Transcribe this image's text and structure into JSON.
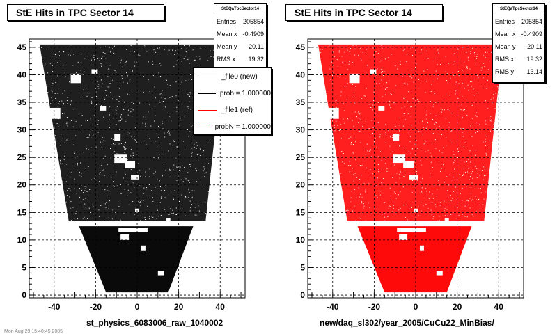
{
  "footer": "Mon Aug 29 15:40:45 2005",
  "panels": [
    {
      "title": "StE Hits in TPC Sector 14",
      "stats": {
        "name": "StEQaTpcSector14",
        "rows": [
          {
            "label": "Entries",
            "value": "205854"
          },
          {
            "label": "Mean x",
            "value": "-0.4909"
          },
          {
            "label": "Mean y",
            "value": "20.11"
          },
          {
            "label": "RMS x",
            "value": "19.32"
          }
        ]
      },
      "legend": [
        {
          "label": "_file0 (new)",
          "color": "#000000"
        },
        {
          "label": "prob = 1.000000",
          "color": "#000000"
        },
        {
          "label": "_file1 (ref)",
          "color": "#ff0000"
        },
        {
          "label": "probN = 1.000000",
          "color": "#ff0000"
        }
      ],
      "xtitle": "st_physics_6083006_raw_1040002",
      "color": "#000000"
    },
    {
      "title": "StE Hits in TPC Sector 14",
      "stats": {
        "name": "StEQaTpcSector14",
        "rows": [
          {
            "label": "Entries",
            "value": "205854"
          },
          {
            "label": "Mean x",
            "value": "-0.4909"
          },
          {
            "label": "Mean y",
            "value": "20.11"
          },
          {
            "label": "RMS x",
            "value": "19.32"
          },
          {
            "label": "RMS y",
            "value": "13.14"
          }
        ]
      },
      "legend": [],
      "xtitle": "new/daq_sl302/year_2005/CuCu22_MinBias/",
      "color": "#ff0000"
    }
  ],
  "chart_data": [
    {
      "type": "heatmap",
      "title": "StE Hits in TPC Sector 14",
      "xlabel": "st_physics_6083006_raw_1040002",
      "ylabel": "",
      "xlim": [
        -52,
        52
      ],
      "ylim": [
        -0.5,
        46.5
      ],
      "xticks": [
        -40,
        -20,
        0,
        20,
        40
      ],
      "yticks": [
        0,
        5,
        10,
        15,
        20,
        25,
        30,
        35,
        40,
        45
      ],
      "grid": true,
      "series": [
        {
          "name": "_file0 (new)",
          "color": "#000000"
        }
      ],
      "shape": {
        "y_top": 45.5,
        "rows": [
          {
            "y": 45.5,
            "xmin": -47,
            "xmax": 42
          },
          {
            "y": 13.5,
            "xmin": -33,
            "xmax": 33
          },
          {
            "y": 12.5,
            "xmin": -28,
            "xmax": 27
          },
          {
            "y": 0.5,
            "xmin": -15,
            "xmax": 15
          }
        ],
        "gap_y": [
          13.1,
          13.9
        ]
      }
    },
    {
      "type": "heatmap",
      "title": "StE Hits in TPC Sector 14",
      "xlabel": "new/daq_sl302/year_2005/CuCu22_MinBias/",
      "ylabel": "",
      "xlim": [
        -52,
        52
      ],
      "ylim": [
        -0.5,
        46.5
      ],
      "xticks": [
        -40,
        -20,
        0,
        20,
        40
      ],
      "yticks": [
        0,
        5,
        10,
        15,
        20,
        25,
        30,
        35,
        40,
        45
      ],
      "grid": true,
      "series": [
        {
          "name": "_file1 (ref)",
          "color": "#ff0000"
        }
      ],
      "shape": {
        "y_top": 45.5,
        "rows": [
          {
            "y": 45.5,
            "xmin": -47,
            "xmax": 42
          },
          {
            "y": 13.5,
            "xmin": -33,
            "xmax": 33
          },
          {
            "y": 12.5,
            "xmin": -28,
            "xmax": 27
          },
          {
            "y": 0.5,
            "xmin": -15,
            "xmax": 15
          }
        ],
        "gap_y": [
          13.1,
          13.9
        ]
      }
    }
  ]
}
